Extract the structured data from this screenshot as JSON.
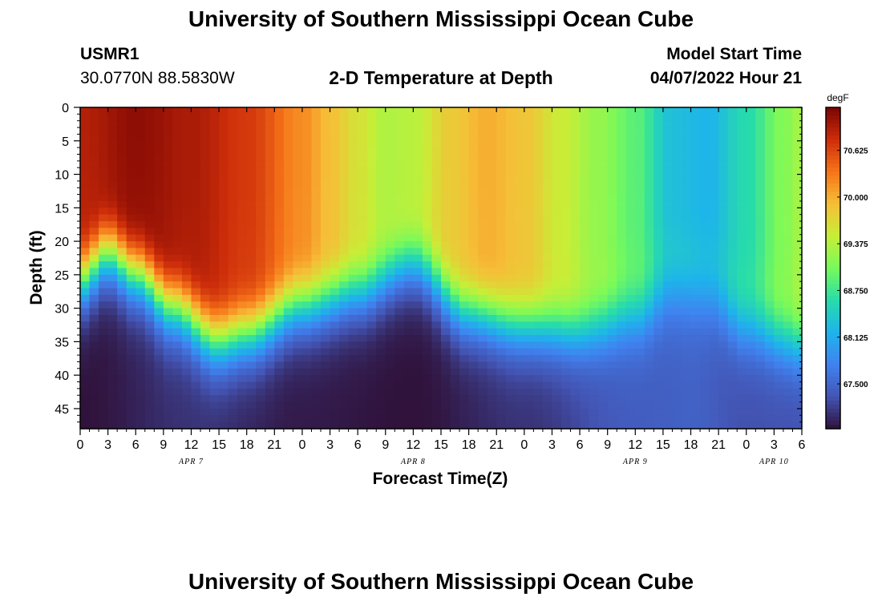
{
  "header": {
    "title": "University of Southern Mississippi Ocean Cube",
    "station_id": "USMR1",
    "station_coords": "30.0770N  88.5830W",
    "plot_title": "2-D Temperature at Depth",
    "model_start_label": "Model Start Time",
    "model_start_value": "04/07/2022 Hour 21"
  },
  "footer": {
    "title": "University of Southern Mississippi Ocean Cube"
  },
  "chart_data": {
    "type": "heatmap",
    "title": "2-D Temperature at Depth",
    "xlabel": "Forecast Time(Z)",
    "ylabel": "Depth (ft)",
    "x_unit": "forecast hour",
    "xlim": [
      0,
      78
    ],
    "ylim": [
      48,
      0
    ],
    "x_tick_labels": [
      "0",
      "3",
      "6",
      "9",
      "12",
      "15",
      "18",
      "21",
      "0",
      "3",
      "6",
      "9",
      "12",
      "15",
      "18",
      "21",
      "0",
      "3",
      "6",
      "9",
      "12",
      "15",
      "18",
      "21",
      "0",
      "3",
      "6"
    ],
    "y_ticks": [
      0,
      5,
      10,
      15,
      20,
      25,
      30,
      35,
      40,
      45
    ],
    "date_labels": [
      {
        "label": "APR 7",
        "hour": 12
      },
      {
        "label": "APR 8",
        "hour": 36
      },
      {
        "label": "APR 9",
        "hour": 60
      },
      {
        "label": "APR 10",
        "hour": 75
      }
    ],
    "colorbar": {
      "unit": "degF",
      "min": 66.9,
      "max": 71.2,
      "ticks": [
        "70.625",
        "70.000",
        "69.375",
        "68.750",
        "68.125",
        "67.500"
      ],
      "tick_values": [
        70.625,
        70.0,
        69.375,
        68.75,
        68.125,
        67.5
      ]
    },
    "thermocline_depth_ft": [
      {
        "hour": 0,
        "depth": 26
      },
      {
        "hour": 3,
        "depth": 22
      },
      {
        "hour": 6,
        "depth": 25
      },
      {
        "hour": 10,
        "depth": 30
      },
      {
        "hour": 15,
        "depth": 35
      },
      {
        "hour": 18,
        "depth": 34
      },
      {
        "hour": 24,
        "depth": 30
      },
      {
        "hour": 30,
        "depth": 28
      },
      {
        "hour": 36,
        "depth": 24
      },
      {
        "hour": 42,
        "depth": 31
      },
      {
        "hour": 48,
        "depth": 33
      },
      {
        "hour": 54,
        "depth": 34
      },
      {
        "hour": 60,
        "depth": 32
      },
      {
        "hour": 64,
        "depth": 29
      },
      {
        "hour": 68,
        "depth": 30
      },
      {
        "hour": 72,
        "depth": 34
      },
      {
        "hour": 78,
        "depth": 36
      }
    ],
    "surface_temperature_degF": [
      {
        "hour": 0,
        "value": 70.9
      },
      {
        "hour": 6,
        "value": 71.1
      },
      {
        "hour": 12,
        "value": 70.95
      },
      {
        "hour": 18,
        "value": 70.7
      },
      {
        "hour": 24,
        "value": 70.2
      },
      {
        "hour": 27,
        "value": 69.9
      },
      {
        "hour": 30,
        "value": 69.6
      },
      {
        "hour": 33,
        "value": 69.35
      },
      {
        "hour": 36,
        "value": 69.4
      },
      {
        "hour": 40,
        "value": 69.8
      },
      {
        "hour": 44,
        "value": 70.0
      },
      {
        "hour": 48,
        "value": 69.85
      },
      {
        "hour": 52,
        "value": 69.5
      },
      {
        "hour": 56,
        "value": 69.2
      },
      {
        "hour": 60,
        "value": 68.9
      },
      {
        "hour": 64,
        "value": 68.3
      },
      {
        "hour": 68,
        "value": 68.2
      },
      {
        "hour": 72,
        "value": 68.6
      },
      {
        "hour": 76,
        "value": 69.1
      },
      {
        "hour": 78,
        "value": 69.3
      }
    ],
    "deep_temperature_degF": [
      {
        "hour": 0,
        "value": 66.9
      },
      {
        "hour": 12,
        "value": 67.1
      },
      {
        "hour": 24,
        "value": 66.95
      },
      {
        "hour": 36,
        "value": 66.9
      },
      {
        "hour": 48,
        "value": 67.1
      },
      {
        "hour": 60,
        "value": 67.4
      },
      {
        "hour": 66,
        "value": 67.45
      },
      {
        "hour": 72,
        "value": 67.3
      },
      {
        "hour": 78,
        "value": 67.3
      }
    ]
  }
}
